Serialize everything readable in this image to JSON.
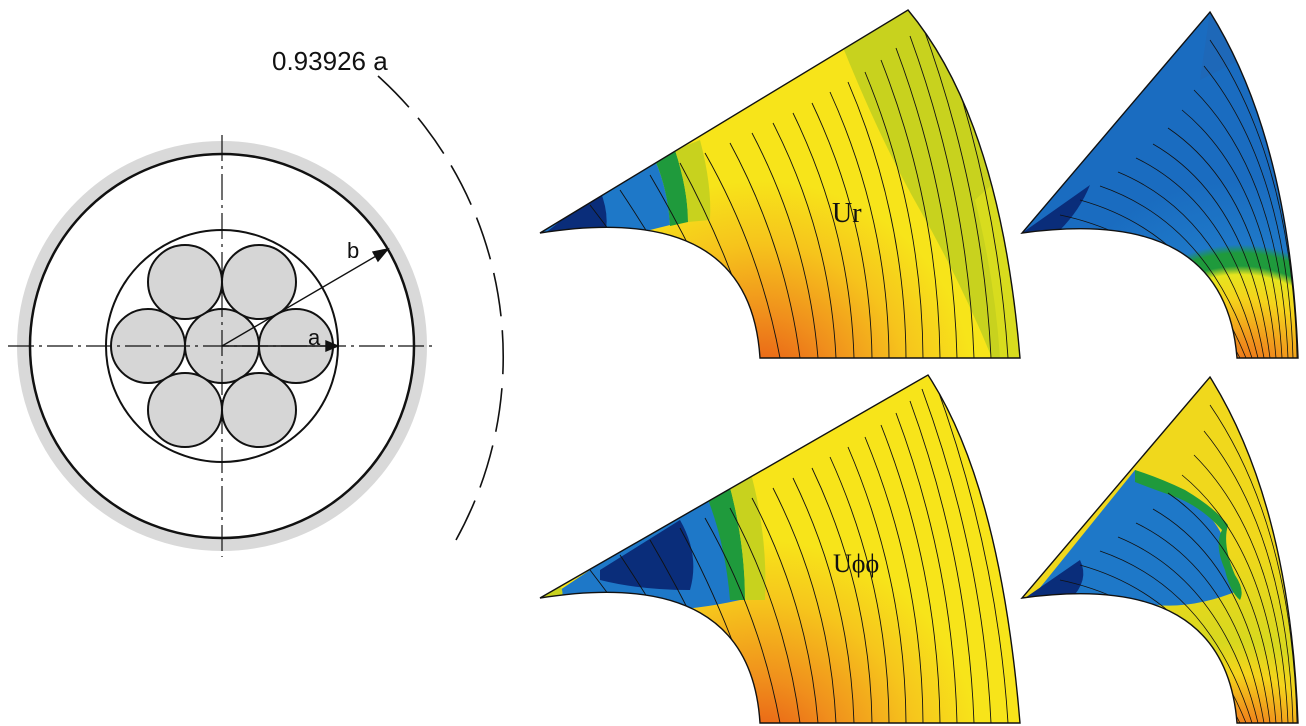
{
  "cross_section": {
    "radius_label": "0.93926 a",
    "outer_radius_symbol": "b",
    "wire_radius_symbol": "a"
  },
  "contour_plots": [
    {
      "id": "top-large",
      "label": "Ur"
    },
    {
      "id": "top-small",
      "label": ""
    },
    {
      "id": "bottom-large",
      "label": "Uϕϕ"
    },
    {
      "id": "bottom-small",
      "label": ""
    }
  ],
  "colors": {
    "insulation": "#d9d9d9",
    "wire_fill": "#d6d6d6",
    "outline": "#111111",
    "contour_dark_blue": "#0a2d7a",
    "contour_blue": "#1e78c8",
    "contour_green": "#1f9a3c",
    "contour_olive": "#c8d21e",
    "contour_yellow": "#f5e61c",
    "contour_orange": "#f09a1e",
    "contour_red": "#e65014"
  }
}
